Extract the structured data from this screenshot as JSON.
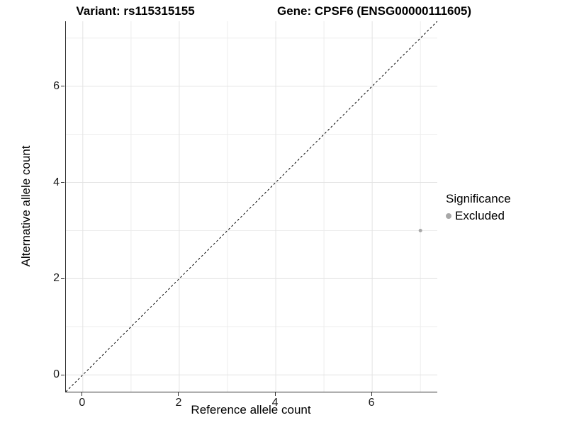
{
  "titles": {
    "left": "Variant: rs115315155",
    "right": "Gene: CPSF6 (ENSG00000111605)"
  },
  "chart_data": {
    "type": "scatter",
    "xlabel": "Reference allele count",
    "ylabel": "Alternative allele count",
    "xlim": [
      -0.35,
      7.35
    ],
    "ylim": [
      -0.35,
      7.35
    ],
    "x_ticks": [
      0,
      2,
      4,
      6
    ],
    "y_ticks": [
      0,
      2,
      4,
      6
    ],
    "grid": {
      "major": [
        0,
        2,
        4,
        6
      ],
      "minor": [
        1,
        3,
        5,
        7
      ],
      "major_color": "#e3e3e3",
      "minor_color": "#ededed"
    },
    "reference_line": {
      "type": "identity",
      "style": "dashed",
      "from": [
        -0.35,
        -0.35
      ],
      "to": [
        7.35,
        7.35
      ],
      "color": "#000000"
    },
    "series": [
      {
        "name": "Excluded",
        "color": "#a8a8a8",
        "point_radius": 2.5,
        "points": [
          {
            "x": 7,
            "y": 3
          }
        ]
      }
    ],
    "legend": {
      "title": "Significance",
      "position": "right",
      "items": [
        {
          "label": "Excluded",
          "color": "#a8a8a8"
        }
      ]
    }
  },
  "colors": {
    "axis_line": "#2f2f2f",
    "tick_text": "#1a1a1a",
    "background": "#ffffff"
  }
}
